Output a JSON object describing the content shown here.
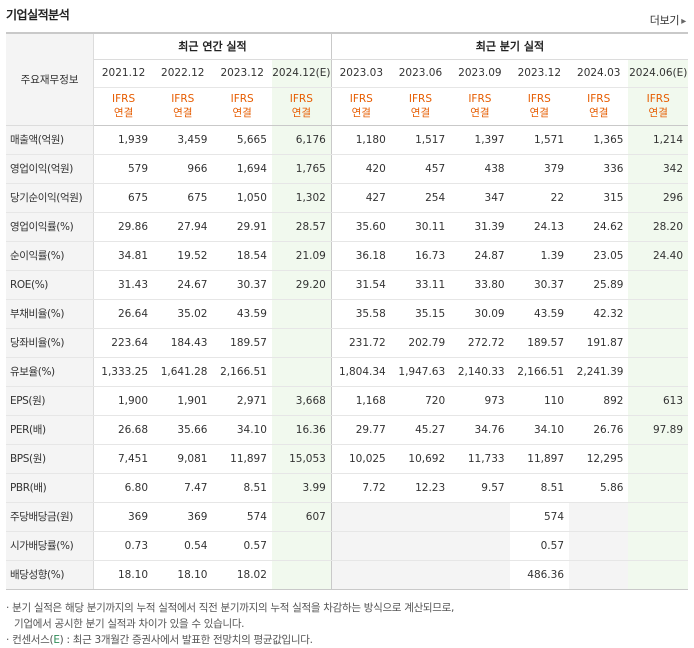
{
  "title": "기업실적분석",
  "more_label": "더보기",
  "more_arrow": "▸",
  "header": {
    "item_label": "주요재무정보",
    "annual_group": "최근 연간 실적",
    "quarter_group": "최근 분기 실적",
    "annual_periods": [
      "2021.12",
      "2022.12",
      "2023.12",
      "2024.12(E)"
    ],
    "quarter_periods": [
      "2023.03",
      "2023.06",
      "2023.09",
      "2023.12",
      "2024.03",
      "2024.06(E)"
    ],
    "standard_top": "IFRS",
    "standard_bottom": "연결"
  },
  "rows": [
    {
      "label": "매출액(억원)",
      "annual": [
        "1,939",
        "3,459",
        "5,665",
        "6,176"
      ],
      "quarter": [
        "1,180",
        "1,517",
        "1,397",
        "1,571",
        "1,365",
        "1,214"
      ]
    },
    {
      "label": "영업이익(억원)",
      "annual": [
        "579",
        "966",
        "1,694",
        "1,765"
      ],
      "quarter": [
        "420",
        "457",
        "438",
        "379",
        "336",
        "342"
      ]
    },
    {
      "label": "당기순이익(억원)",
      "annual": [
        "675",
        "675",
        "1,050",
        "1,302"
      ],
      "quarter": [
        "427",
        "254",
        "347",
        "22",
        "315",
        "296"
      ]
    },
    {
      "label": "영업이익률(%)",
      "annual": [
        "29.86",
        "27.94",
        "29.91",
        "28.57"
      ],
      "quarter": [
        "35.60",
        "30.11",
        "31.39",
        "24.13",
        "24.62",
        "28.20"
      ]
    },
    {
      "label": "순이익률(%)",
      "annual": [
        "34.81",
        "19.52",
        "18.54",
        "21.09"
      ],
      "quarter": [
        "36.18",
        "16.73",
        "24.87",
        "1.39",
        "23.05",
        "24.40"
      ]
    },
    {
      "label": "ROE(%)",
      "annual": [
        "31.43",
        "24.67",
        "30.37",
        "29.20"
      ],
      "quarter": [
        "31.54",
        "33.11",
        "33.80",
        "30.37",
        "25.89",
        ""
      ]
    },
    {
      "label": "부채비율(%)",
      "annual": [
        "26.64",
        "35.02",
        "43.59",
        ""
      ],
      "quarter": [
        "35.58",
        "35.15",
        "30.09",
        "43.59",
        "42.32",
        ""
      ]
    },
    {
      "label": "당좌비율(%)",
      "annual": [
        "223.64",
        "184.43",
        "189.57",
        ""
      ],
      "quarter": [
        "231.72",
        "202.79",
        "272.72",
        "189.57",
        "191.87",
        ""
      ]
    },
    {
      "label": "유보율(%)",
      "annual": [
        "1,333.25",
        "1,641.28",
        "2,166.51",
        ""
      ],
      "quarter": [
        "1,804.34",
        "1,947.63",
        "2,140.33",
        "2,166.51",
        "2,241.39",
        ""
      ]
    },
    {
      "label": "EPS(원)",
      "annual": [
        "1,900",
        "1,901",
        "2,971",
        "3,668"
      ],
      "quarter": [
        "1,168",
        "720",
        "973",
        "110",
        "892",
        "613"
      ]
    },
    {
      "label": "PER(배)",
      "annual": [
        "26.68",
        "35.66",
        "34.10",
        "16.36"
      ],
      "quarter": [
        "29.77",
        "45.27",
        "34.76",
        "34.10",
        "26.76",
        "97.89"
      ]
    },
    {
      "label": "BPS(원)",
      "annual": [
        "7,451",
        "9,081",
        "11,897",
        "15,053"
      ],
      "quarter": [
        "10,025",
        "10,692",
        "11,733",
        "11,897",
        "12,295",
        ""
      ]
    },
    {
      "label": "PBR(배)",
      "annual": [
        "6.80",
        "7.47",
        "8.51",
        "3.99"
      ],
      "quarter": [
        "7.72",
        "12.23",
        "9.57",
        "8.51",
        "5.86",
        ""
      ]
    },
    {
      "label": "주당배당금(원)",
      "annual": [
        "369",
        "369",
        "574",
        "607"
      ],
      "quarter": [
        "",
        "",
        "",
        "574",
        "",
        ""
      ]
    },
    {
      "label": "시가배당률(%)",
      "annual": [
        "0.73",
        "0.54",
        "0.57",
        ""
      ],
      "quarter": [
        "",
        "",
        "",
        "0.57",
        "",
        ""
      ]
    },
    {
      "label": "배당성향(%)",
      "annual": [
        "18.10",
        "18.10",
        "18.02",
        ""
      ],
      "quarter": [
        "",
        "",
        "",
        "486.36",
        "",
        ""
      ]
    }
  ],
  "notes": {
    "line1": "분기 실적은 해당 분기까지의 누적 실적에서 직전 분기까지의 누적 실적을 차감하는 방식으로 계산되므로,",
    "line2": "기업에서 공시한 분기 실적과 차이가 있을 수 있습니다.",
    "line3_prefix": "컨센서스(",
    "line3_e": "E",
    "line3_suffix": ") : 최근 3개월간 증권사에서 발표한 전망치의 평균값입니다."
  },
  "colors": {
    "ifrs": "#e65c00",
    "estimate_bg": "#f1f9ee",
    "estimate_text": "#2e8b57",
    "label_bg": "#f4f4f4"
  }
}
